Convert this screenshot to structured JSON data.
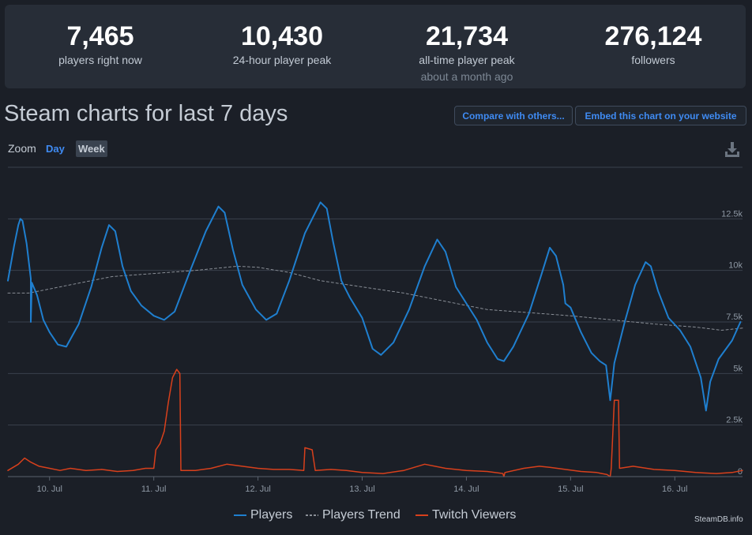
{
  "stats": [
    {
      "value": "7,465",
      "label": "players right now",
      "sub": ""
    },
    {
      "value": "10,430",
      "label": "24-hour player peak",
      "sub": ""
    },
    {
      "value": "21,734",
      "label": "all-time player peak",
      "sub": "about a month ago"
    },
    {
      "value": "276,124",
      "label": "followers",
      "sub": ""
    }
  ],
  "header": {
    "title": "Steam charts for last 7 days",
    "compare_label": "Compare with others...",
    "embed_label": "Embed this chart on your website"
  },
  "zoom": {
    "label": "Zoom",
    "day": "Day",
    "week": "Week",
    "selected": "Week"
  },
  "icons": {
    "download": "download-icon"
  },
  "credit": "SteamDB.info",
  "colors": {
    "players": "#1f7fcf",
    "trend": "#8a8f97",
    "twitch": "#d8401c",
    "accent": "#3f8bf3"
  },
  "chart_data": {
    "type": "line",
    "x_unit": "days",
    "xlim": [
      9.6,
      16.65
    ],
    "ylim": [
      0,
      15000
    ],
    "y_tick_values": [
      0,
      2500,
      5000,
      7500,
      10000,
      12500
    ],
    "y_tick_labels": [
      "0",
      "2.5k",
      "5k",
      "7.5k",
      "10k",
      "12.5k"
    ],
    "x_tick_values": [
      10,
      11,
      12,
      13,
      14,
      15,
      16
    ],
    "x_tick_labels": [
      "10. Jul",
      "11. Jul",
      "12. Jul",
      "13. Jul",
      "14. Jul",
      "15. Jul",
      "16. Jul"
    ],
    "grid": true,
    "legend_position": "bottom-center",
    "series": [
      {
        "name": "Players",
        "color": "#1f7fcf",
        "style": "solid",
        "points": [
          [
            9.6,
            9500
          ],
          [
            9.66,
            11200
          ],
          [
            9.7,
            12200
          ],
          [
            9.72,
            12500
          ],
          [
            9.74,
            12400
          ],
          [
            9.78,
            11300
          ],
          [
            9.82,
            9600
          ],
          [
            9.82,
            7500
          ],
          [
            9.83,
            9400
          ],
          [
            9.88,
            8800
          ],
          [
            9.94,
            7600
          ],
          [
            10.0,
            7000
          ],
          [
            10.08,
            6400
          ],
          [
            10.16,
            6300
          ],
          [
            10.28,
            7400
          ],
          [
            10.4,
            9200
          ],
          [
            10.5,
            11100
          ],
          [
            10.57,
            12200
          ],
          [
            10.63,
            11900
          ],
          [
            10.7,
            10200
          ],
          [
            10.78,
            9000
          ],
          [
            10.88,
            8300
          ],
          [
            11.0,
            7800
          ],
          [
            11.1,
            7600
          ],
          [
            11.2,
            8000
          ],
          [
            11.35,
            10000
          ],
          [
            11.5,
            11900
          ],
          [
            11.62,
            13100
          ],
          [
            11.68,
            12800
          ],
          [
            11.76,
            11000
          ],
          [
            11.85,
            9300
          ],
          [
            11.98,
            8100
          ],
          [
            12.08,
            7600
          ],
          [
            12.18,
            7900
          ],
          [
            12.3,
            9500
          ],
          [
            12.45,
            11800
          ],
          [
            12.6,
            13300
          ],
          [
            12.66,
            13000
          ],
          [
            12.72,
            11400
          ],
          [
            12.8,
            9500
          ],
          [
            12.88,
            8700
          ],
          [
            13.0,
            7700
          ],
          [
            13.1,
            6200
          ],
          [
            13.18,
            5900
          ],
          [
            13.3,
            6500
          ],
          [
            13.45,
            8100
          ],
          [
            13.6,
            10200
          ],
          [
            13.72,
            11500
          ],
          [
            13.8,
            10900
          ],
          [
            13.9,
            9200
          ],
          [
            14.0,
            8400
          ],
          [
            14.1,
            7600
          ],
          [
            14.2,
            6500
          ],
          [
            14.3,
            5700
          ],
          [
            14.36,
            5600
          ],
          [
            14.45,
            6300
          ],
          [
            14.6,
            7900
          ],
          [
            14.72,
            9800
          ],
          [
            14.8,
            11100
          ],
          [
            14.86,
            10700
          ],
          [
            14.93,
            9300
          ],
          [
            14.95,
            8400
          ],
          [
            15.0,
            8200
          ],
          [
            15.1,
            7000
          ],
          [
            15.2,
            6000
          ],
          [
            15.28,
            5600
          ],
          [
            15.34,
            5400
          ],
          [
            15.38,
            3700
          ],
          [
            15.42,
            5500
          ],
          [
            15.52,
            7500
          ],
          [
            15.62,
            9300
          ],
          [
            15.72,
            10400
          ],
          [
            15.77,
            10200
          ],
          [
            15.84,
            9000
          ],
          [
            15.94,
            7700
          ],
          [
            16.05,
            7100
          ],
          [
            16.15,
            6300
          ],
          [
            16.25,
            4800
          ],
          [
            16.3,
            3200
          ],
          [
            16.34,
            4600
          ],
          [
            16.42,
            5700
          ],
          [
            16.55,
            6600
          ],
          [
            16.63,
            7500
          ]
        ]
      },
      {
        "name": "Players Trend",
        "color": "#8a8f97",
        "style": "dashed",
        "points": [
          [
            9.6,
            8900
          ],
          [
            9.8,
            8900
          ],
          [
            10.0,
            9100
          ],
          [
            10.3,
            9400
          ],
          [
            10.6,
            9700
          ],
          [
            11.0,
            9850
          ],
          [
            11.4,
            10000
          ],
          [
            11.8,
            10200
          ],
          [
            12.0,
            10150
          ],
          [
            12.3,
            9900
          ],
          [
            12.6,
            9500
          ],
          [
            13.0,
            9200
          ],
          [
            13.4,
            8900
          ],
          [
            13.8,
            8500
          ],
          [
            14.2,
            8100
          ],
          [
            14.6,
            7950
          ],
          [
            15.0,
            7800
          ],
          [
            15.4,
            7600
          ],
          [
            15.8,
            7400
          ],
          [
            16.2,
            7250
          ],
          [
            16.45,
            7100
          ],
          [
            16.65,
            7200
          ]
        ]
      },
      {
        "name": "Twitch Viewers",
        "color": "#d8401c",
        "style": "solid",
        "points": [
          [
            9.6,
            300
          ],
          [
            9.7,
            600
          ],
          [
            9.76,
            900
          ],
          [
            9.82,
            700
          ],
          [
            9.9,
            500
          ],
          [
            10.0,
            400
          ],
          [
            10.1,
            300
          ],
          [
            10.2,
            400
          ],
          [
            10.35,
            300
          ],
          [
            10.5,
            350
          ],
          [
            10.65,
            250
          ],
          [
            10.8,
            300
          ],
          [
            10.92,
            400
          ],
          [
            11.0,
            400
          ],
          [
            11.02,
            1300
          ],
          [
            11.06,
            1600
          ],
          [
            11.1,
            2200
          ],
          [
            11.14,
            3600
          ],
          [
            11.18,
            4800
          ],
          [
            11.22,
            5200
          ],
          [
            11.25,
            5000
          ],
          [
            11.26,
            300
          ],
          [
            11.4,
            300
          ],
          [
            11.55,
            400
          ],
          [
            11.7,
            600
          ],
          [
            11.85,
            500
          ],
          [
            12.0,
            400
          ],
          [
            12.15,
            350
          ],
          [
            12.3,
            350
          ],
          [
            12.44,
            300
          ],
          [
            12.45,
            1400
          ],
          [
            12.52,
            1300
          ],
          [
            12.55,
            300
          ],
          [
            12.7,
            350
          ],
          [
            12.85,
            300
          ],
          [
            13.0,
            200
          ],
          [
            13.2,
            150
          ],
          [
            13.4,
            300
          ],
          [
            13.6,
            600
          ],
          [
            13.8,
            400
          ],
          [
            14.0,
            300
          ],
          [
            14.2,
            250
          ],
          [
            14.35,
            150
          ],
          [
            14.36,
            0
          ],
          [
            14.37,
            200
          ],
          [
            14.55,
            400
          ],
          [
            14.7,
            500
          ],
          [
            14.8,
            450
          ],
          [
            14.95,
            350
          ],
          [
            15.1,
            250
          ],
          [
            15.25,
            200
          ],
          [
            15.35,
            100
          ],
          [
            15.38,
            0
          ],
          [
            15.39,
            400
          ],
          [
            15.42,
            3700
          ],
          [
            15.46,
            3700
          ],
          [
            15.47,
            400
          ],
          [
            15.6,
            500
          ],
          [
            15.8,
            350
          ],
          [
            16.0,
            300
          ],
          [
            16.2,
            200
          ],
          [
            16.4,
            150
          ],
          [
            16.55,
            200
          ],
          [
            16.65,
            300
          ]
        ]
      }
    ]
  }
}
